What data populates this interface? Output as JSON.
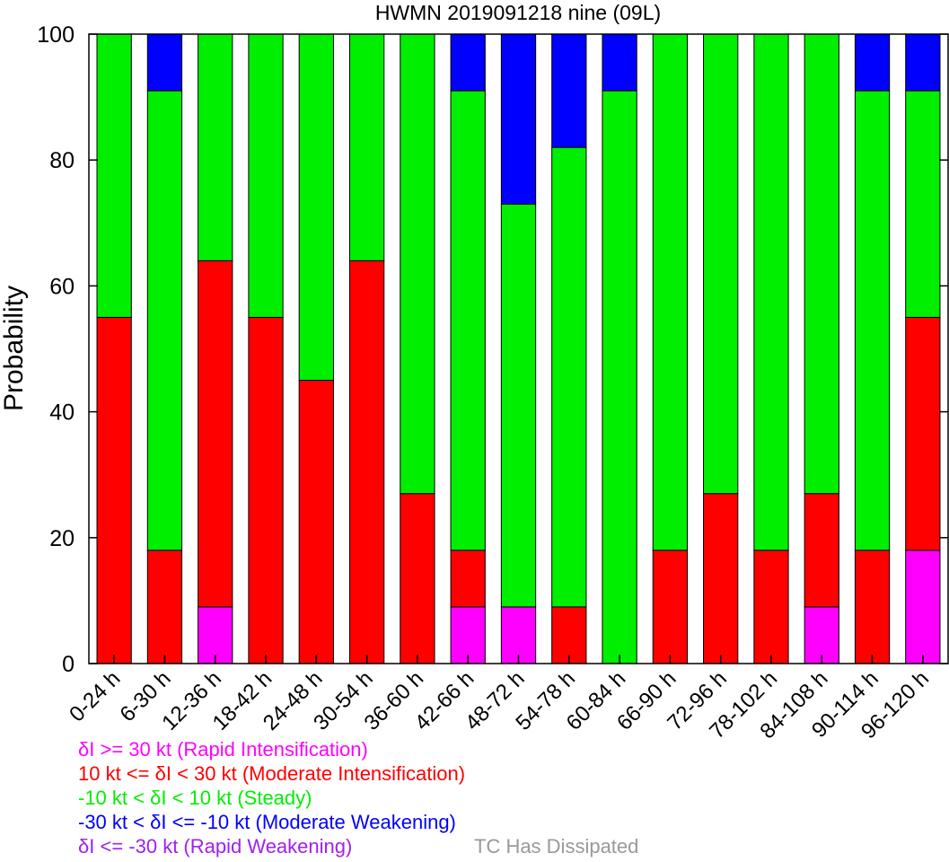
{
  "chart_data": {
    "type": "bar",
    "stacked": true,
    "title": "HWMN 2019091218 nine (09L)",
    "xlabel": "",
    "ylabel": "Probability",
    "ylim": [
      0,
      100
    ],
    "yticks": [
      0,
      20,
      40,
      60,
      80,
      100
    ],
    "grid": false,
    "categories": [
      "0-24 h",
      "6-30 h",
      "12-36 h",
      "18-42 h",
      "24-48 h",
      "30-54 h",
      "36-60 h",
      "42-66 h",
      "48-72 h",
      "54-78 h",
      "60-84 h",
      "66-90 h",
      "72-96 h",
      "78-102 h",
      "84-108 h",
      "90-114 h",
      "96-120 h"
    ],
    "series": [
      {
        "key": "rapid_weakening",
        "color": "#a020f0",
        "values": [
          0,
          0,
          0,
          0,
          0,
          0,
          0,
          0,
          0,
          0,
          0,
          0,
          0,
          0,
          0,
          0,
          0
        ]
      },
      {
        "key": "rapid_intensification",
        "color": "#ff00ff",
        "values": [
          0,
          0,
          9,
          0,
          0,
          0,
          0,
          9,
          9,
          0,
          0,
          0,
          0,
          0,
          9,
          0,
          18
        ]
      },
      {
        "key": "moderate_intensification",
        "color": "#ff0000",
        "values": [
          55,
          18,
          55,
          55,
          45,
          64,
          27,
          9,
          0,
          9,
          0,
          18,
          27,
          18,
          18,
          18,
          37
        ]
      },
      {
        "key": "steady",
        "color": "#00ee00",
        "values": [
          45,
          73,
          36,
          45,
          55,
          36,
          73,
          73,
          64,
          73,
          91,
          82,
          73,
          82,
          73,
          73,
          36
        ]
      },
      {
        "key": "moderate_weakening",
        "color": "#0000ff",
        "values": [
          0,
          9,
          0,
          0,
          0,
          0,
          0,
          9,
          27,
          18,
          9,
          0,
          0,
          0,
          0,
          9,
          9
        ]
      }
    ],
    "legend": {
      "placement": "bottom-left",
      "entries": [
        {
          "text": "δI >= 30 kt (Rapid Intensification)",
          "color": "#ff00ff"
        },
        {
          "text": "10 kt <= δI < 30 kt (Moderate Intensification)",
          "color": "#ff0000"
        },
        {
          "text": "-10 kt < δI < 10 kt (Steady)",
          "color": "#00ee00"
        },
        {
          "text": "-30 kt < δI <= -10 kt (Moderate Weakening)",
          "color": "#0000ff"
        },
        {
          "text": "δI <= -30 kt (Rapid Weakening)",
          "color": "#a020f0"
        }
      ],
      "dissipated_note": {
        "text": "TC Has Dissipated",
        "color": "#999999"
      }
    }
  }
}
